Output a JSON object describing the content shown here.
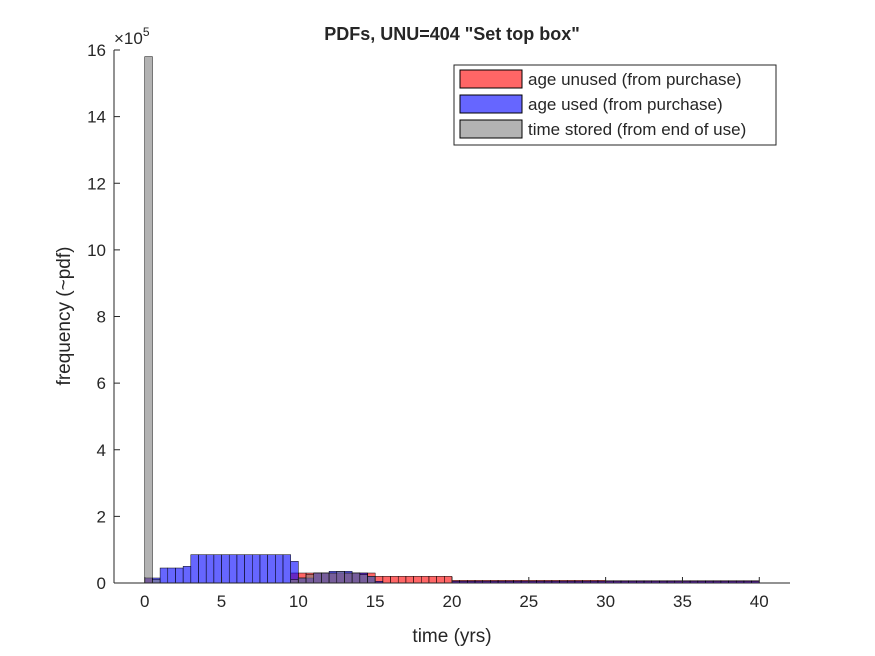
{
  "chart_data": {
    "type": "bar",
    "title": "PDFs, UNU=404 \"Set top box\"",
    "xlabel": "time (yrs)",
    "ylabel": "frequency (~pdf)",
    "y_exponent_label": "×10",
    "y_exponent_power": "5",
    "xlim": [
      -2,
      42
    ],
    "ylim": [
      0,
      16
    ],
    "y_scale_factor": 100000,
    "bin_width": 0.5,
    "grid": false,
    "legend_position": "top-right",
    "xticks": [
      0,
      5,
      10,
      15,
      20,
      25,
      30,
      35,
      40
    ],
    "xtick_labels": [
      "0",
      "5",
      "10",
      "15",
      "20",
      "25",
      "30",
      "35",
      "40"
    ],
    "yticks": [
      0,
      2,
      4,
      6,
      8,
      10,
      12,
      14,
      16
    ],
    "ytick_labels": [
      "0",
      "2",
      "4",
      "6",
      "8",
      "10",
      "12",
      "14",
      "16"
    ],
    "series": [
      {
        "name": "age unused (from purchase)",
        "color": "#ff0000",
        "alpha": 0.6,
        "bins": [
          {
            "x": 0,
            "y": 0.15
          },
          {
            "x": 9.5,
            "y": 0.3
          },
          {
            "x": 10,
            "y": 0.3
          },
          {
            "x": 10.5,
            "y": 0.3
          },
          {
            "x": 11,
            "y": 0.3
          },
          {
            "x": 11.5,
            "y": 0.3
          },
          {
            "x": 12,
            "y": 0.3
          },
          {
            "x": 12.5,
            "y": 0.3
          },
          {
            "x": 13,
            "y": 0.3
          },
          {
            "x": 13.5,
            "y": 0.3
          },
          {
            "x": 14,
            "y": 0.3
          },
          {
            "x": 14.5,
            "y": 0.3
          },
          {
            "x": 15,
            "y": 0.2
          },
          {
            "x": 15.5,
            "y": 0.2
          },
          {
            "x": 16,
            "y": 0.2
          },
          {
            "x": 16.5,
            "y": 0.2
          },
          {
            "x": 17,
            "y": 0.2
          },
          {
            "x": 17.5,
            "y": 0.2
          },
          {
            "x": 18,
            "y": 0.2
          },
          {
            "x": 18.5,
            "y": 0.2
          },
          {
            "x": 19,
            "y": 0.2
          },
          {
            "x": 19.5,
            "y": 0.2
          },
          {
            "x": 20,
            "y": 0.08
          },
          {
            "x": 20.5,
            "y": 0.08
          },
          {
            "x": 21,
            "y": 0.08
          },
          {
            "x": 21.5,
            "y": 0.08
          },
          {
            "x": 22,
            "y": 0.08
          },
          {
            "x": 22.5,
            "y": 0.08
          },
          {
            "x": 23,
            "y": 0.08
          },
          {
            "x": 23.5,
            "y": 0.08
          },
          {
            "x": 24,
            "y": 0.08
          },
          {
            "x": 24.5,
            "y": 0.08
          },
          {
            "x": 25,
            "y": 0.08
          },
          {
            "x": 25.5,
            "y": 0.08
          },
          {
            "x": 26,
            "y": 0.08
          },
          {
            "x": 26.5,
            "y": 0.08
          },
          {
            "x": 27,
            "y": 0.08
          },
          {
            "x": 27.5,
            "y": 0.08
          },
          {
            "x": 28,
            "y": 0.08
          },
          {
            "x": 28.5,
            "y": 0.08
          },
          {
            "x": 29,
            "y": 0.08
          },
          {
            "x": 29.5,
            "y": 0.08
          },
          {
            "x": 30,
            "y": 0.07
          },
          {
            "x": 30.5,
            "y": 0.07
          },
          {
            "x": 31,
            "y": 0.07
          },
          {
            "x": 31.5,
            "y": 0.07
          },
          {
            "x": 32,
            "y": 0.07
          },
          {
            "x": 32.5,
            "y": 0.07
          },
          {
            "x": 33,
            "y": 0.07
          },
          {
            "x": 33.5,
            "y": 0.07
          },
          {
            "x": 34,
            "y": 0.07
          },
          {
            "x": 34.5,
            "y": 0.07
          },
          {
            "x": 35,
            "y": 0.07
          },
          {
            "x": 35.5,
            "y": 0.07
          },
          {
            "x": 36,
            "y": 0.07
          },
          {
            "x": 36.5,
            "y": 0.07
          },
          {
            "x": 37,
            "y": 0.07
          },
          {
            "x": 37.5,
            "y": 0.07
          },
          {
            "x": 38,
            "y": 0.07
          },
          {
            "x": 38.5,
            "y": 0.07
          },
          {
            "x": 39,
            "y": 0.07
          },
          {
            "x": 39.5,
            "y": 0.07
          }
        ]
      },
      {
        "name": "age used (from purchase)",
        "color": "#0000ff",
        "alpha": 0.6,
        "bins": [
          {
            "x": 0,
            "y": 0.15
          },
          {
            "x": 0.5,
            "y": 0.15
          },
          {
            "x": 1,
            "y": 0.45
          },
          {
            "x": 1.5,
            "y": 0.45
          },
          {
            "x": 2,
            "y": 0.45
          },
          {
            "x": 2.5,
            "y": 0.5
          },
          {
            "x": 3,
            "y": 0.85
          },
          {
            "x": 3.5,
            "y": 0.85
          },
          {
            "x": 4,
            "y": 0.85
          },
          {
            "x": 4.5,
            "y": 0.85
          },
          {
            "x": 5,
            "y": 0.85
          },
          {
            "x": 5.5,
            "y": 0.85
          },
          {
            "x": 6,
            "y": 0.85
          },
          {
            "x": 6.5,
            "y": 0.85
          },
          {
            "x": 7,
            "y": 0.85
          },
          {
            "x": 7.5,
            "y": 0.85
          },
          {
            "x": 8,
            "y": 0.85
          },
          {
            "x": 8.5,
            "y": 0.85
          },
          {
            "x": 9,
            "y": 0.85
          },
          {
            "x": 9.5,
            "y": 0.65
          },
          {
            "x": 10,
            "y": 0.15
          },
          {
            "x": 10.5,
            "y": 0.15
          },
          {
            "x": 11,
            "y": 0.3
          },
          {
            "x": 11.5,
            "y": 0.3
          },
          {
            "x": 12,
            "y": 0.35
          },
          {
            "x": 12.5,
            "y": 0.35
          },
          {
            "x": 13,
            "y": 0.35
          },
          {
            "x": 13.5,
            "y": 0.3
          },
          {
            "x": 14,
            "y": 0.3
          },
          {
            "x": 14.5,
            "y": 0.2
          },
          {
            "x": 15,
            "y": 0.05
          },
          {
            "x": 20,
            "y": 0.05
          },
          {
            "x": 20.5,
            "y": 0.05
          },
          {
            "x": 21,
            "y": 0.05
          },
          {
            "x": 21.5,
            "y": 0.05
          },
          {
            "x": 22,
            "y": 0.05
          },
          {
            "x": 22.5,
            "y": 0.05
          },
          {
            "x": 23,
            "y": 0.05
          },
          {
            "x": 23.5,
            "y": 0.05
          },
          {
            "x": 24,
            "y": 0.05
          },
          {
            "x": 24.5,
            "y": 0.05
          },
          {
            "x": 25,
            "y": 0.05
          },
          {
            "x": 25.5,
            "y": 0.05
          },
          {
            "x": 26,
            "y": 0.05
          },
          {
            "x": 26.5,
            "y": 0.05
          },
          {
            "x": 27,
            "y": 0.05
          },
          {
            "x": 27.5,
            "y": 0.05
          },
          {
            "x": 28,
            "y": 0.05
          },
          {
            "x": 28.5,
            "y": 0.05
          },
          {
            "x": 29,
            "y": 0.05
          },
          {
            "x": 29.5,
            "y": 0.05
          },
          {
            "x": 30,
            "y": 0.05
          },
          {
            "x": 30.5,
            "y": 0.05
          },
          {
            "x": 31,
            "y": 0.05
          },
          {
            "x": 31.5,
            "y": 0.05
          },
          {
            "x": 32,
            "y": 0.05
          },
          {
            "x": 32.5,
            "y": 0.05
          },
          {
            "x": 33,
            "y": 0.05
          },
          {
            "x": 33.5,
            "y": 0.05
          },
          {
            "x": 34,
            "y": 0.05
          },
          {
            "x": 34.5,
            "y": 0.05
          },
          {
            "x": 35,
            "y": 0.05
          },
          {
            "x": 35.5,
            "y": 0.05
          },
          {
            "x": 36,
            "y": 0.05
          },
          {
            "x": 36.5,
            "y": 0.05
          },
          {
            "x": 37,
            "y": 0.05
          },
          {
            "x": 37.5,
            "y": 0.05
          },
          {
            "x": 38,
            "y": 0.05
          },
          {
            "x": 38.5,
            "y": 0.05
          },
          {
            "x": 39,
            "y": 0.05
          },
          {
            "x": 39.5,
            "y": 0.05
          }
        ]
      },
      {
        "name": "time stored (from end of use)",
        "color": "#808080",
        "alpha": 0.6,
        "bins": [
          {
            "x": 0,
            "y": 15.8
          },
          {
            "x": 0.5,
            "y": 0.1
          },
          {
            "x": 9.5,
            "y": 0.1
          },
          {
            "x": 10,
            "y": 0.15
          },
          {
            "x": 10.5,
            "y": 0.25
          },
          {
            "x": 11,
            "y": 0.3
          },
          {
            "x": 11.5,
            "y": 0.3
          },
          {
            "x": 12,
            "y": 0.3
          },
          {
            "x": 12.5,
            "y": 0.35
          },
          {
            "x": 13,
            "y": 0.3
          },
          {
            "x": 13.5,
            "y": 0.3
          },
          {
            "x": 14,
            "y": 0.25
          },
          {
            "x": 14.5,
            "y": 0.2
          }
        ]
      }
    ]
  }
}
